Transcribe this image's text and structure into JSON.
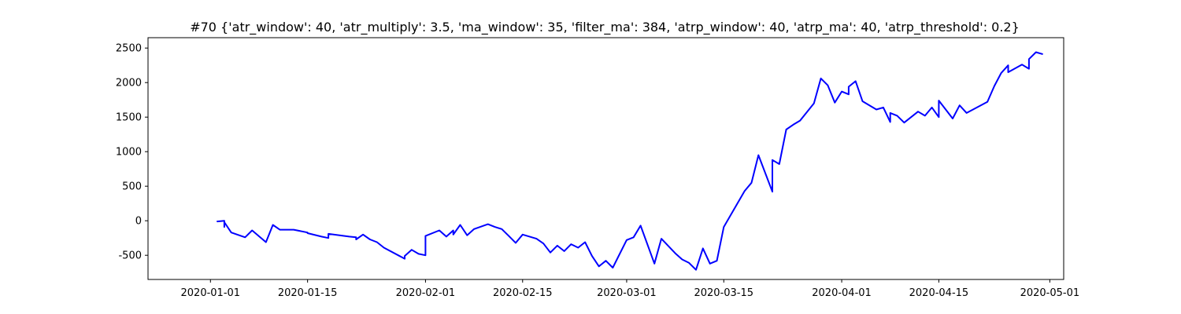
{
  "chart_data": {
    "type": "line",
    "title": "#70 {'atr_window': 40, 'atr_multiply': 3.5, 'ma_window': 35, 'filter_ma': 384, 'atrp_window': 40, 'atrp_ma': 40, 'atrp_threshold': 0.2}",
    "xlabel": "",
    "ylabel": "",
    "x_axis": {
      "type": "date",
      "range": [
        "2019-12-23",
        "2020-05-03"
      ],
      "ticks": [
        "2020-01-01",
        "2020-01-15",
        "2020-02-01",
        "2020-02-15",
        "2020-03-01",
        "2020-03-15",
        "2020-04-01",
        "2020-04-15",
        "2020-05-01"
      ]
    },
    "y_axis": {
      "range": [
        -850,
        2650
      ],
      "ticks": [
        -500,
        0,
        500,
        1000,
        1500,
        2000,
        2500
      ]
    },
    "grid": false,
    "colors": {
      "line": "#0000ff"
    },
    "series": [
      {
        "x": [
          "2020-01-02",
          "2020-01-02",
          "2020-01-03",
          "2020-01-03",
          "2020-01-03",
          "2020-01-04",
          "2020-01-06",
          "2020-01-07",
          "2020-01-09",
          "2020-01-10",
          "2020-01-11",
          "2020-01-13",
          "2020-01-15",
          "2020-01-15",
          "2020-01-17",
          "2020-01-18",
          "2020-01-18",
          "2020-01-21",
          "2020-01-22",
          "2020-01-22",
          "2020-01-23",
          "2020-01-24",
          "2020-01-25",
          "2020-01-26",
          "2020-01-29",
          "2020-01-29",
          "2020-01-30",
          "2020-01-31",
          "2020-02-01",
          "2020-02-01",
          "2020-02-03",
          "2020-02-04",
          "2020-02-05",
          "2020-02-05",
          "2020-02-06",
          "2020-02-07",
          "2020-02-08",
          "2020-02-10",
          "2020-02-10",
          "2020-02-11",
          "2020-02-12",
          "2020-02-13",
          "2020-02-14",
          "2020-02-15",
          "2020-02-16",
          "2020-02-17",
          "2020-02-18",
          "2020-02-19",
          "2020-02-20",
          "2020-02-21",
          "2020-02-22",
          "2020-02-23",
          "2020-02-24",
          "2020-02-25",
          "2020-02-26",
          "2020-02-27",
          "2020-02-28",
          "2020-03-01",
          "2020-03-02",
          "2020-03-03",
          "2020-03-05",
          "2020-03-06",
          "2020-03-08",
          "2020-03-09",
          "2020-03-10",
          "2020-03-11",
          "2020-03-12",
          "2020-03-13",
          "2020-03-14",
          "2020-03-15",
          "2020-03-18",
          "2020-03-19",
          "2020-03-20",
          "2020-03-22",
          "2020-03-22",
          "2020-03-23",
          "2020-03-24",
          "2020-03-25",
          "2020-03-26",
          "2020-03-28",
          "2020-03-29",
          "2020-03-30",
          "2020-03-31",
          "2020-04-01",
          "2020-04-02",
          "2020-04-02",
          "2020-04-03",
          "2020-04-04",
          "2020-04-06",
          "2020-04-07",
          "2020-04-08",
          "2020-04-08",
          "2020-04-09",
          "2020-04-10",
          "2020-04-12",
          "2020-04-13",
          "2020-04-14",
          "2020-04-15",
          "2020-04-15",
          "2020-04-17",
          "2020-04-18",
          "2020-04-19",
          "2020-04-22",
          "2020-04-23",
          "2020-04-24",
          "2020-04-25",
          "2020-04-25",
          "2020-04-27",
          "2020-04-28",
          "2020-04-28",
          "2020-04-29",
          "2020-04-30"
        ],
        "y": [
          0,
          -10,
          0,
          -90,
          -20,
          -170,
          -240,
          -140,
          -310,
          -60,
          -130,
          -130,
          -170,
          -180,
          -230,
          -250,
          -190,
          -230,
          -240,
          -270,
          -200,
          -270,
          -310,
          -390,
          -550,
          -510,
          -420,
          -480,
          -500,
          -220,
          -140,
          -230,
          -140,
          -200,
          -60,
          -210,
          -120,
          -50,
          -50,
          -90,
          -120,
          -220,
          -320,
          -200,
          -230,
          -260,
          -330,
          -460,
          -360,
          -440,
          -340,
          -390,
          -310,
          -510,
          -660,
          -580,
          -680,
          -280,
          -240,
          -70,
          -620,
          -260,
          -470,
          -560,
          -610,
          -710,
          -400,
          -620,
          -580,
          -90,
          430,
          550,
          950,
          420,
          880,
          820,
          1320,
          1390,
          1450,
          1700,
          2060,
          1960,
          1710,
          1870,
          1830,
          1940,
          2020,
          1730,
          1610,
          1640,
          1430,
          1560,
          1520,
          1420,
          1580,
          1520,
          1640,
          1500,
          1740,
          1480,
          1670,
          1560,
          1720,
          1950,
          2140,
          2250,
          2150,
          2260,
          2200,
          2340,
          2440,
          2410
        ]
      }
    ]
  }
}
